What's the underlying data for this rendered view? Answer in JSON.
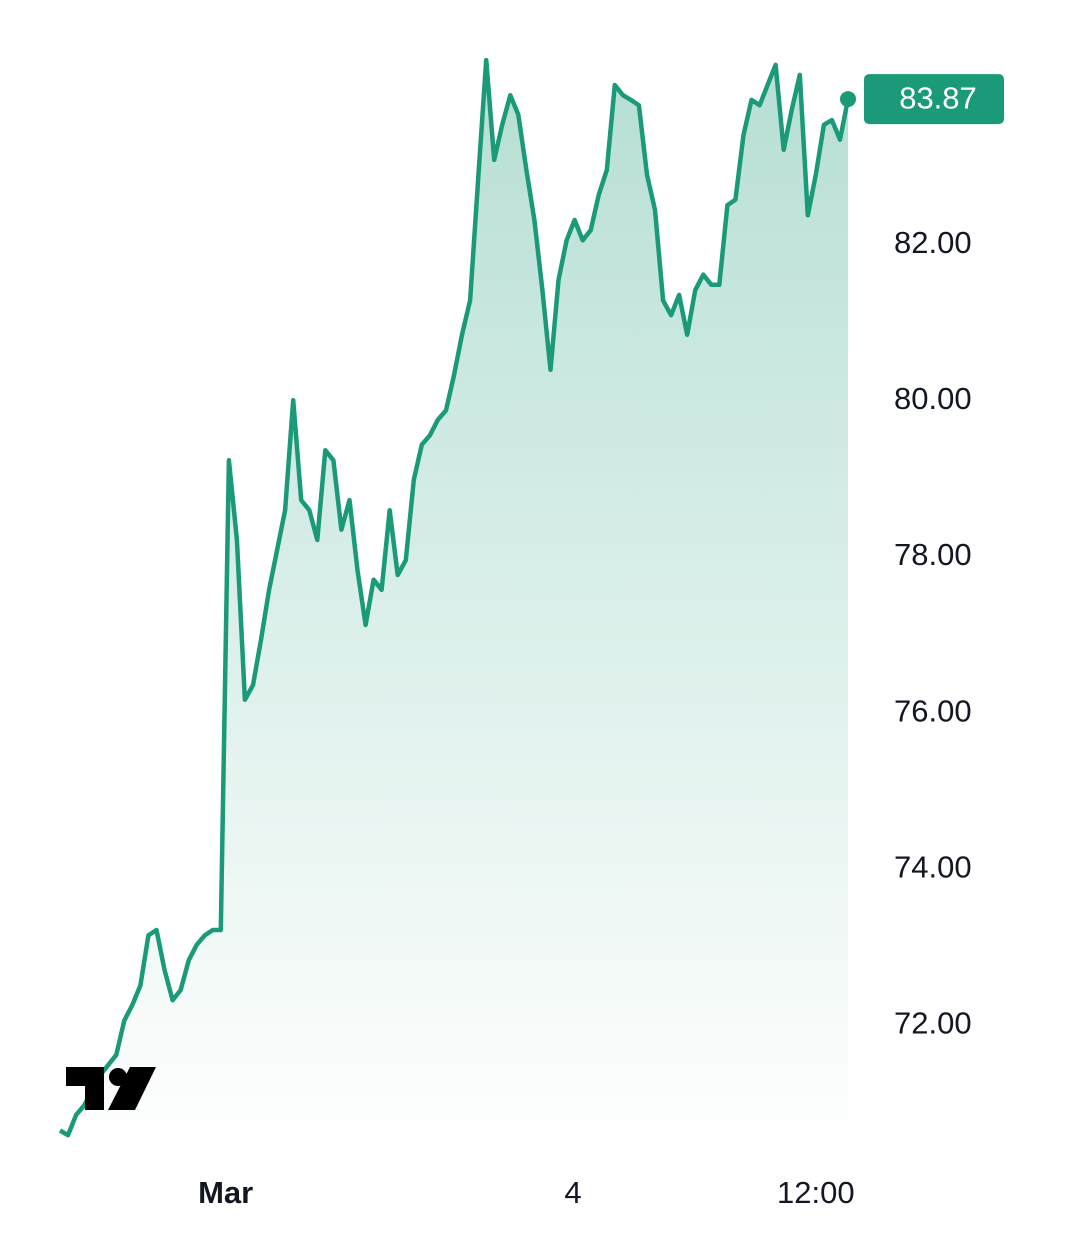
{
  "chart_data": {
    "type": "area",
    "x": [
      0,
      1,
      2,
      3,
      4,
      5,
      6,
      7,
      8,
      9,
      10,
      11,
      12,
      13,
      14,
      15,
      16,
      17,
      18,
      19,
      20,
      21,
      22,
      23,
      24,
      25,
      26,
      27,
      28,
      29,
      30,
      31,
      32,
      33,
      34,
      35,
      36,
      37,
      38,
      39,
      40,
      41,
      42,
      43,
      44,
      45,
      46,
      47,
      48,
      49,
      50,
      51,
      52,
      53,
      54,
      55,
      56,
      57,
      58,
      59,
      60,
      61,
      62,
      63,
      64,
      65,
      66,
      67,
      68,
      69,
      70,
      71,
      72,
      73,
      74,
      75,
      76,
      77,
      78,
      79,
      80,
      81,
      82,
      83,
      84,
      85,
      86,
      87,
      88,
      89,
      90,
      91,
      92,
      93,
      94,
      95,
      96,
      97,
      98
    ],
    "values": [
      70.65,
      70.59,
      70.85,
      70.97,
      71.17,
      71.36,
      71.49,
      71.62,
      72.06,
      72.26,
      72.51,
      73.15,
      73.22,
      72.71,
      72.32,
      72.45,
      72.83,
      73.03,
      73.15,
      73.22,
      73.22,
      79.24,
      78.22,
      76.17,
      76.36,
      76.94,
      77.58,
      78.09,
      78.6,
      80.01,
      78.73,
      78.6,
      78.22,
      79.37,
      79.24,
      78.35,
      78.73,
      77.83,
      77.13,
      77.71,
      77.58,
      78.6,
      77.77,
      77.96,
      78.99,
      79.44,
      79.56,
      79.76,
      79.88,
      80.33,
      80.85,
      81.29,
      82.83,
      84.37,
      83.09,
      83.54,
      83.92,
      83.67,
      82.96,
      82.32,
      81.42,
      80.4,
      81.55,
      82.06,
      82.32,
      82.06,
      82.19,
      82.64,
      82.96,
      84.05,
      83.92,
      83.86,
      83.79,
      82.9,
      82.45,
      81.29,
      81.1,
      81.36,
      80.85,
      81.42,
      81.62,
      81.49,
      81.49,
      82.51,
      82.58,
      83.41,
      83.86,
      83.79,
      84.05,
      84.31,
      83.22,
      83.73,
      84.18,
      82.38,
      82.9,
      83.54,
      83.6,
      83.35,
      83.87
    ],
    "color": "#1a9a78",
    "xlim": [
      0,
      98
    ],
    "xticks": [
      {
        "value": 20.6,
        "label": "Mar"
      },
      {
        "value": 63.8,
        "label": "4"
      },
      {
        "value": 94.0,
        "label": "12:00"
      }
    ],
    "ylim": [
      70.4,
      85.14
    ],
    "yticks": [
      {
        "value": 72,
        "label": "72.00"
      },
      {
        "value": 74,
        "label": "74.00"
      },
      {
        "value": 76,
        "label": "76.00"
      },
      {
        "value": 78,
        "label": "78.00"
      },
      {
        "value": 80,
        "label": "80.00"
      },
      {
        "value": 82,
        "label": "82.00"
      }
    ]
  }
}
